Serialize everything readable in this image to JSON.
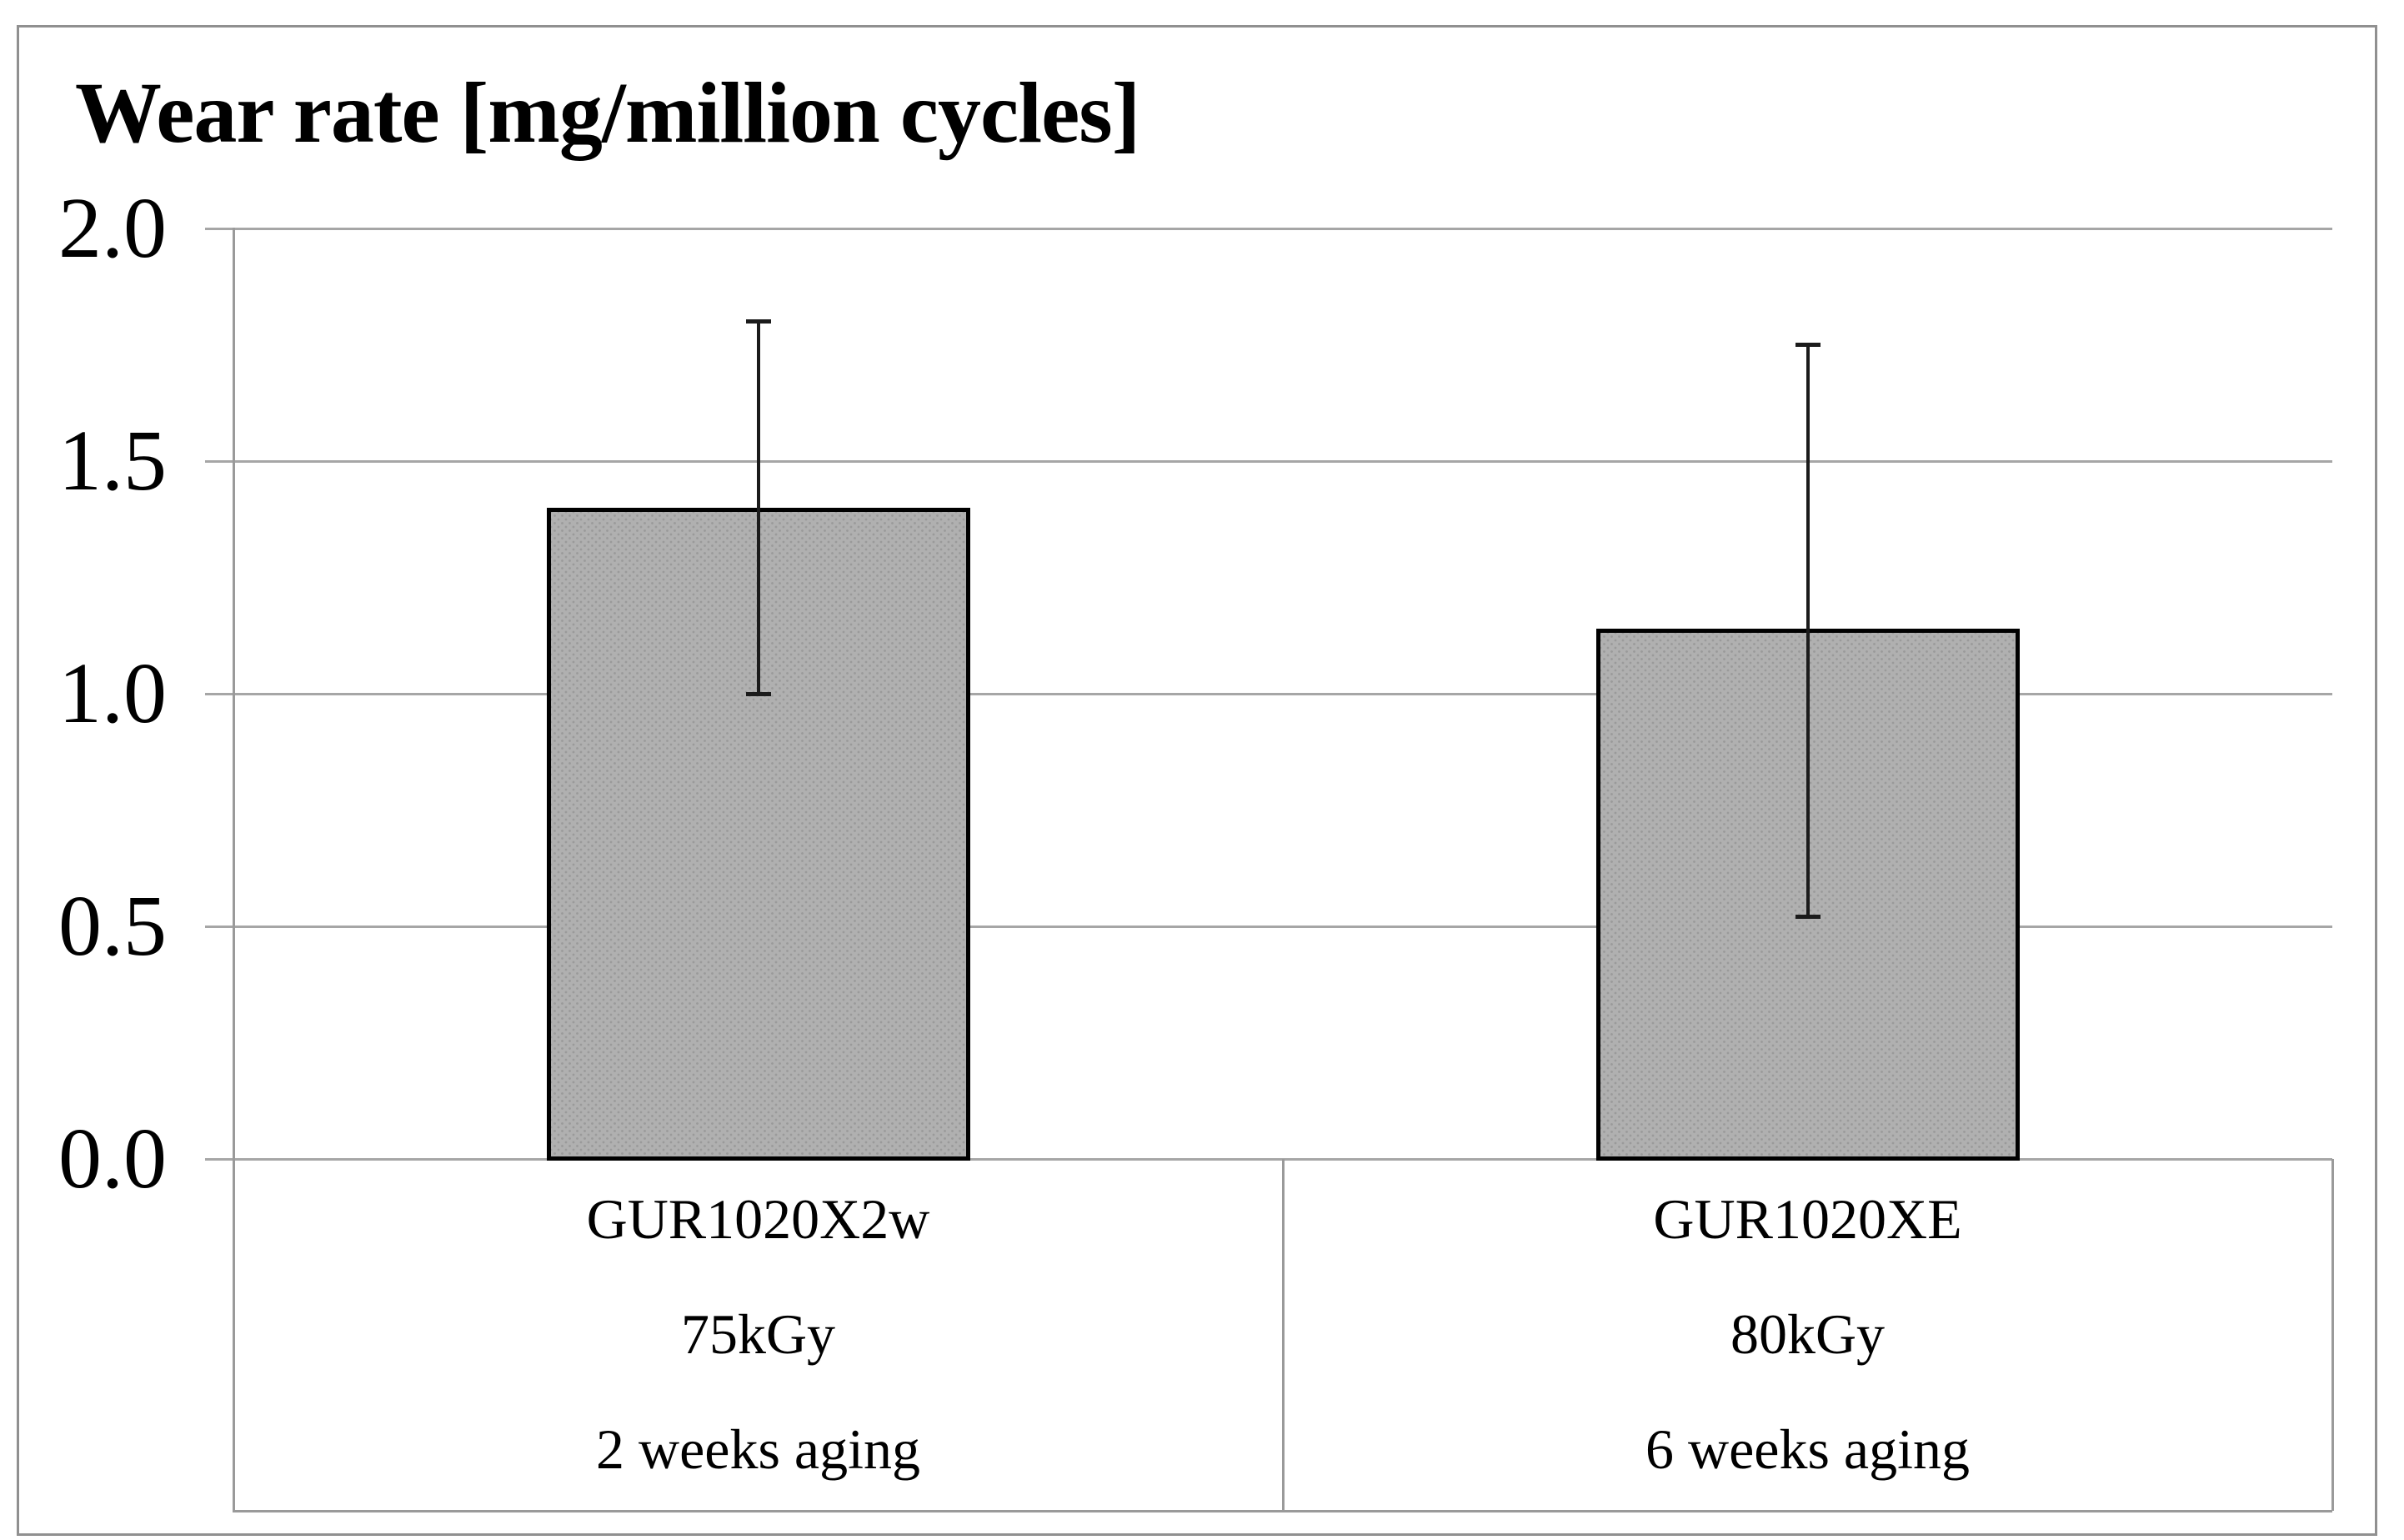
{
  "chart_data": {
    "type": "bar",
    "title": "Wear rate [mg/million cycles]",
    "xlabel": "",
    "ylabel": "Wear rate [mg/million cycles]",
    "ylim": [
      0.0,
      2.0
    ],
    "yticks": [
      "2.0",
      "1.5",
      "1.0",
      "0.5",
      "0.0"
    ],
    "ytick_values": [
      2.0,
      1.5,
      1.0,
      0.5,
      0.0
    ],
    "grid": true,
    "legend_position": "none",
    "categories": [
      {
        "lines": [
          "GUR1020X2w",
          "75kGy",
          "2 weeks aging"
        ]
      },
      {
        "lines": [
          "GUR1020XE",
          "80kGy",
          "6 weeks aging"
        ]
      }
    ],
    "values": [
      1.4,
      1.14
    ],
    "error_bars": [
      {
        "low": 1.0,
        "high": 1.8
      },
      {
        "low": 0.52,
        "high": 1.75
      }
    ],
    "colors": {
      "bar_fill": "#b0b0b0",
      "bar_pattern_dots": "#9a9a9a",
      "bar_border": "#000000",
      "gridline": "#a6a6a6",
      "axis_line": "#9a9a9a",
      "error_bar": "#1b1b1b",
      "text": "#000000",
      "figure_border": "#909090",
      "background": "#ffffff"
    }
  }
}
